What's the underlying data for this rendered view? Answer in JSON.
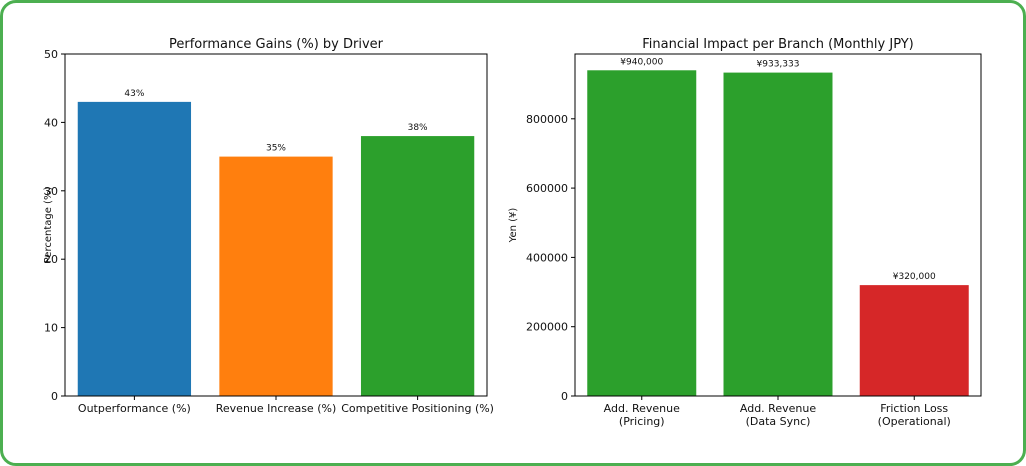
{
  "chart_data": [
    {
      "type": "bar",
      "title": "Performance Gains (%) by Driver",
      "ylabel": "Percentage (%)",
      "xlabel": "",
      "ylim": [
        0,
        50
      ],
      "yticks": [
        "0",
        "10",
        "20",
        "30",
        "40",
        "50"
      ],
      "categories": [
        "Outperformance (%)",
        "Revenue Increase (%)",
        "Competitive Positioning (%)"
      ],
      "values": [
        43,
        35,
        38
      ],
      "value_labels": [
        "43%",
        "35%",
        "38%"
      ],
      "colors": [
        "#1f77b4",
        "#ff7f0e",
        "#2ca02c"
      ]
    },
    {
      "type": "bar",
      "title": "Financial Impact per Branch (Monthly JPY)",
      "ylabel": "Yen (¥)",
      "xlabel": "",
      "ylim": [
        0,
        987000
      ],
      "yticks": [
        "0",
        "200000",
        "400000",
        "600000",
        "800000"
      ],
      "categories": [
        [
          "Add. Revenue",
          "(Pricing)"
        ],
        [
          "Add. Revenue",
          "(Data Sync)"
        ],
        [
          "Friction Loss",
          "(Operational)"
        ]
      ],
      "values": [
        940000,
        933333,
        320000
      ],
      "value_labels": [
        "¥940,000",
        "¥933,333",
        "¥320,000"
      ],
      "colors": [
        "#2ca02c",
        "#2ca02c",
        "#d62728"
      ]
    }
  ]
}
